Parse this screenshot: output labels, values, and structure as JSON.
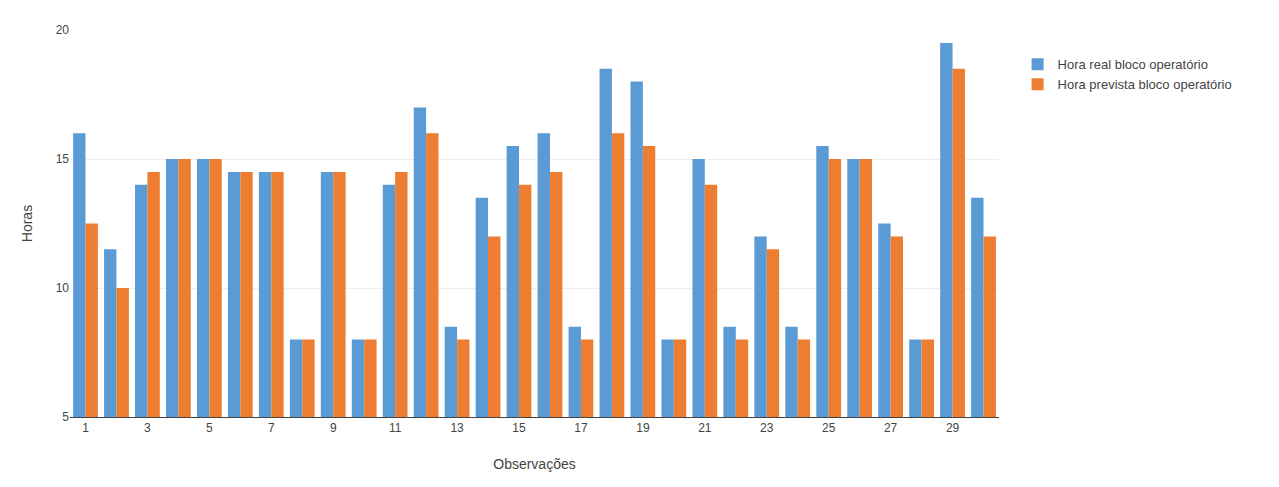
{
  "chart_data": {
    "type": "bar",
    "xlabel": "Observações",
    "ylabel": "Horas",
    "categories": [
      "1",
      null,
      "3",
      null,
      "5",
      null,
      "7",
      null,
      "9",
      null,
      "11",
      null,
      "13",
      null,
      "15",
      null,
      "17",
      null,
      "19",
      null,
      "21",
      null,
      "23",
      null,
      "25",
      null,
      "27",
      null,
      "29",
      null
    ],
    "series": [
      {
        "name": "Hora real bloco operatório",
        "color": "#5B9BD5",
        "values": [
          16.0,
          11.5,
          14.0,
          15.0,
          15.0,
          14.5,
          14.5,
          8.0,
          14.5,
          8.0,
          14.0,
          17.0,
          8.5,
          13.5,
          15.5,
          16.0,
          8.5,
          18.5,
          18.0,
          8.0,
          15.0,
          8.5,
          12.0,
          8.5,
          15.5,
          15.0,
          12.5,
          8.0,
          19.5,
          13.5
        ]
      },
      {
        "name": "Hora prevista bloco operatório",
        "color": "#ED7D31",
        "values": [
          12.5,
          10.0,
          14.5,
          15.0,
          15.0,
          14.5,
          14.5,
          8.0,
          14.5,
          8.0,
          14.5,
          16.0,
          8.0,
          12.0,
          14.0,
          14.5,
          8.0,
          16.0,
          15.5,
          8.0,
          14.0,
          8.0,
          11.5,
          8.0,
          15.0,
          15.0,
          12.0,
          8.0,
          18.5,
          12.0
        ]
      }
    ],
    "ylim": [
      5,
      20
    ],
    "yticks": [
      5,
      10,
      15,
      20
    ],
    "grid": true,
    "legend": "right"
  }
}
